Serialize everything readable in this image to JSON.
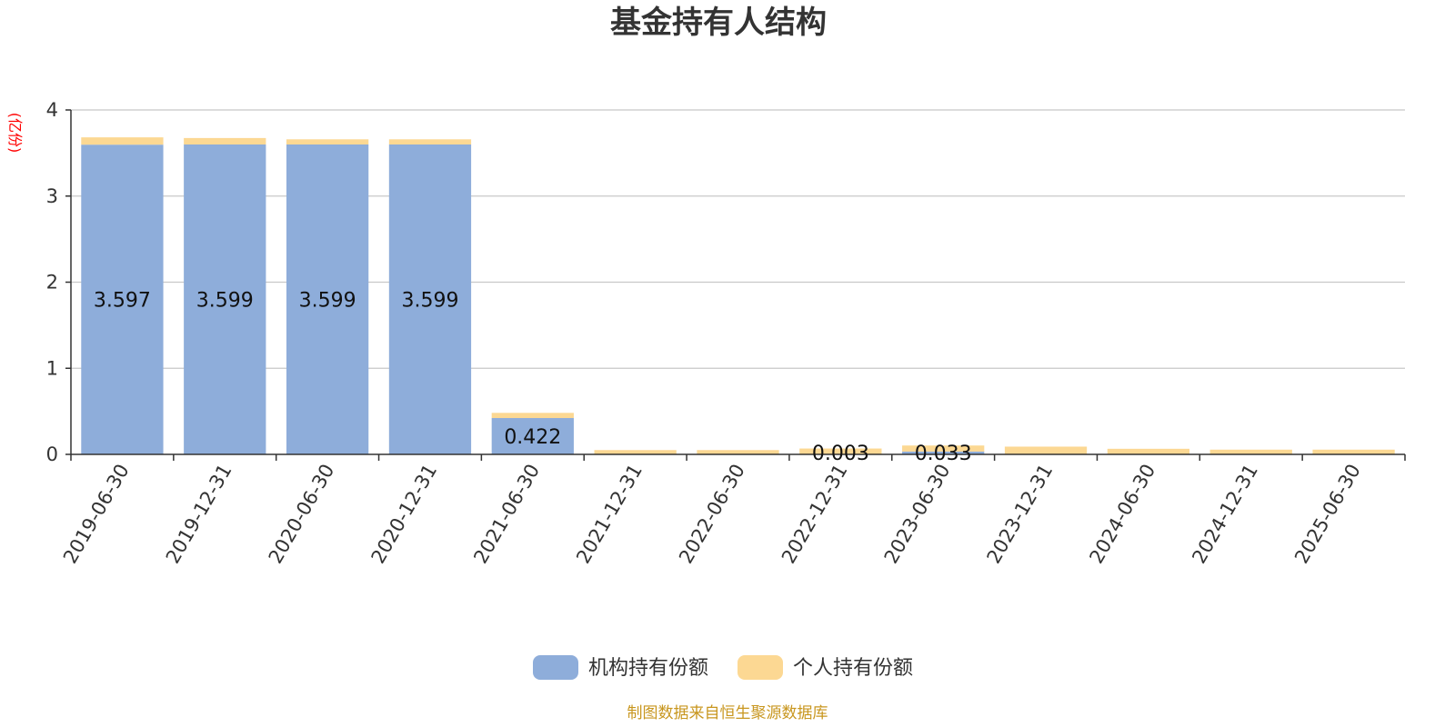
{
  "title": "基金持有人结构",
  "unit_label": "(亿份)",
  "source": "制图数据来自恒生聚源数据库",
  "colors": {
    "institutional": "#8eadda",
    "individual": "#fcd893",
    "grid": "#c8c8c8",
    "axis": "#333333",
    "source": "#c8961e",
    "unit": "#ff0000"
  },
  "chart_data": {
    "type": "bar",
    "stacked": true,
    "title": "基金持有人结构",
    "ylabel": "(亿份)",
    "xlabel": "",
    "ylim": [
      0,
      4
    ],
    "yticks": [
      "0",
      "1",
      "2",
      "3",
      "4"
    ],
    "grid": true,
    "legend_position": "bottom",
    "categories": [
      "2019-06-30",
      "2019-12-31",
      "2020-06-30",
      "2020-12-31",
      "2021-06-30",
      "2021-12-31",
      "2022-06-30",
      "2022-12-31",
      "2023-06-30",
      "2023-12-31",
      "2024-06-30",
      "2024-12-31",
      "2025-06-30"
    ],
    "series": [
      {
        "name": "机构持有份额",
        "color": "#8eadda",
        "values": [
          3.597,
          3.599,
          3.599,
          3.599,
          0.422,
          0,
          0,
          0.003,
          0.033,
          0,
          0,
          0,
          0
        ],
        "labels": [
          "3.597",
          "3.599",
          "3.599",
          "3.599",
          "0.422",
          "",
          "",
          "0.003",
          "0.033",
          "",
          "",
          "",
          ""
        ]
      },
      {
        "name": "个人持有份额",
        "color": "#fcd893",
        "values": [
          0.085,
          0.075,
          0.06,
          0.06,
          0.06,
          0.05,
          0.05,
          0.065,
          0.07,
          0.09,
          0.065,
          0.055,
          0.055
        ]
      }
    ]
  }
}
